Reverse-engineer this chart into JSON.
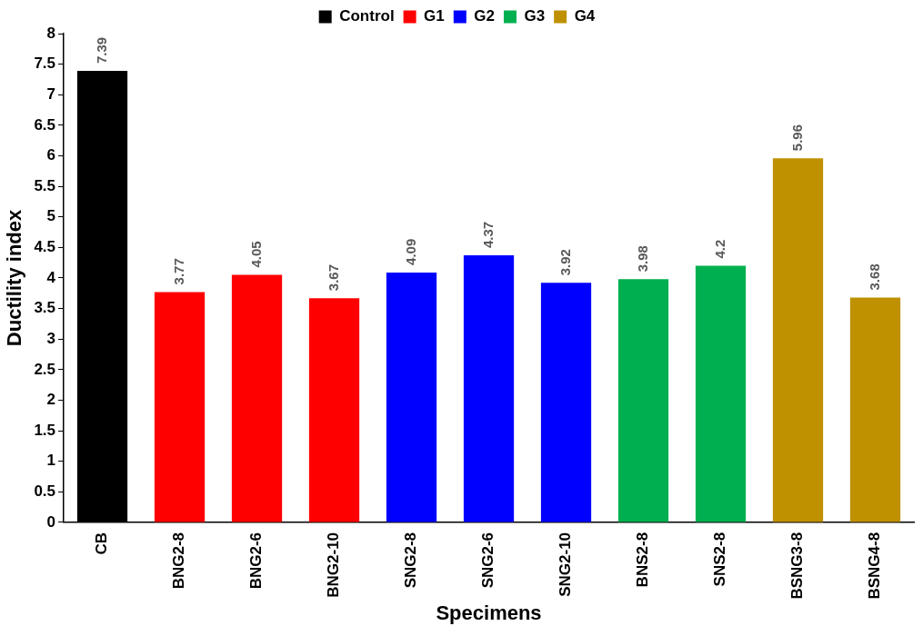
{
  "chart_data": {
    "type": "bar",
    "xlabel": "Specimens",
    "ylabel": "Ductility index",
    "categories": [
      "CB",
      "BNG2-8",
      "BNG2-6",
      "BNG2-10",
      "SNG2-8",
      "SNG2-6",
      "SNG2-10",
      "BNS2-8",
      "SNS2-8",
      "BSNG3-8",
      "BSNG4-8"
    ],
    "series": [
      {
        "name": "Control",
        "color": "#000000",
        "values": [
          7.39,
          null,
          null,
          null,
          null,
          null,
          null,
          null,
          null,
          null,
          null
        ]
      },
      {
        "name": "G1",
        "color": "#ff0000",
        "values": [
          null,
          3.77,
          4.05,
          3.67,
          null,
          null,
          null,
          null,
          null,
          null,
          null
        ]
      },
      {
        "name": "G2",
        "color": "#0000ff",
        "values": [
          null,
          null,
          null,
          null,
          4.09,
          4.37,
          3.92,
          null,
          null,
          null,
          null
        ]
      },
      {
        "name": "G3",
        "color": "#00b050",
        "values": [
          null,
          null,
          null,
          null,
          null,
          null,
          null,
          3.98,
          4.2,
          null,
          null
        ]
      },
      {
        "name": "G4",
        "color": "#bf9000",
        "values": [
          null,
          null,
          null,
          null,
          null,
          null,
          null,
          null,
          null,
          5.96,
          3.68
        ]
      }
    ],
    "ylim": [
      0,
      8
    ],
    "yticks": [
      0,
      0.5,
      1,
      1.5,
      2,
      2.5,
      3,
      3.5,
      4,
      4.5,
      5,
      5.5,
      6,
      6.5,
      7,
      7.5,
      8
    ],
    "grid": false,
    "legend": "top",
    "data_labels": true
  }
}
